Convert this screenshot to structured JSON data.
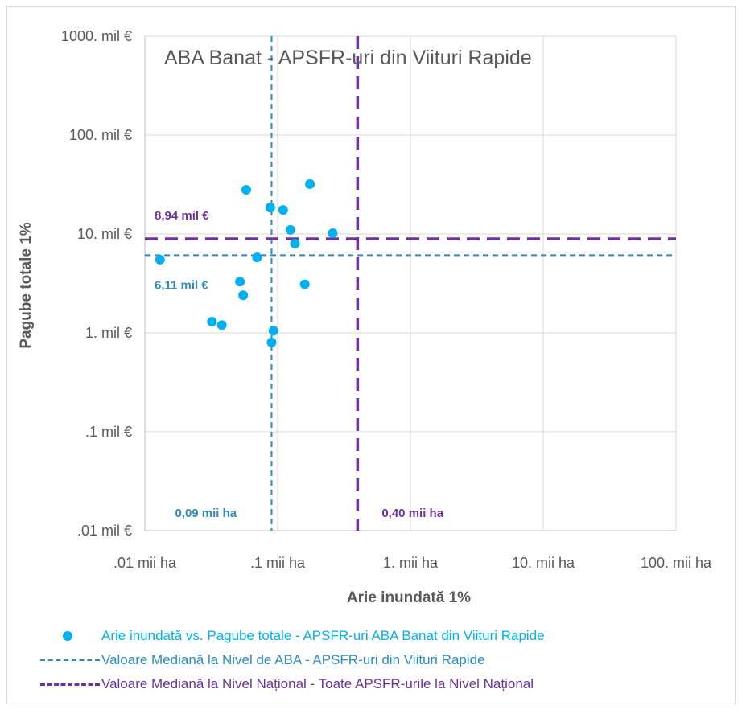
{
  "chart_data": {
    "type": "scatter",
    "title": "ABA Banat - APSFR-uri din Viituri Rapide",
    "xlabel": "Arie inundată 1%",
    "ylabel": "Pagube totale 1%",
    "x_scale": "log",
    "y_scale": "log",
    "xlim": [
      0.01,
      100
    ],
    "ylim": [
      0.01,
      1000
    ],
    "grid": true,
    "x_ticks": [
      {
        "value": 0.01,
        "label": ".01 mii ha"
      },
      {
        "value": 0.1,
        "label": ".1 mii ha"
      },
      {
        "value": 1,
        "label": "1. mii ha"
      },
      {
        "value": 10,
        "label": "10. mii ha"
      },
      {
        "value": 100,
        "label": "100. mii ha"
      }
    ],
    "y_ticks": [
      {
        "value": 0.01,
        "label": ".01 mil €"
      },
      {
        "value": 0.1,
        "label": ".1 mil €"
      },
      {
        "value": 1,
        "label": "1. mil €"
      },
      {
        "value": 10,
        "label": "10. mil €"
      },
      {
        "value": 100,
        "label": "100. mil €"
      },
      {
        "value": 1000,
        "label": "1000. mil €"
      }
    ],
    "series": [
      {
        "name": "Arie inundată vs. Pagube totale - APSFR-uri ABA Banat din Viituri Rapide",
        "color": "#00b0f0",
        "points": [
          {
            "x": 0.013,
            "y": 5.5
          },
          {
            "x": 0.032,
            "y": 1.3
          },
          {
            "x": 0.038,
            "y": 1.2
          },
          {
            "x": 0.052,
            "y": 3.3
          },
          {
            "x": 0.055,
            "y": 2.4
          },
          {
            "x": 0.058,
            "y": 28
          },
          {
            "x": 0.07,
            "y": 5.8
          },
          {
            "x": 0.088,
            "y": 18.5
          },
          {
            "x": 0.09,
            "y": 0.8
          },
          {
            "x": 0.093,
            "y": 1.05
          },
          {
            "x": 0.11,
            "y": 17.5
          },
          {
            "x": 0.125,
            "y": 11
          },
          {
            "x": 0.135,
            "y": 8
          },
          {
            "x": 0.16,
            "y": 3.1
          },
          {
            "x": 0.175,
            "y": 32
          },
          {
            "x": 0.26,
            "y": 10.2
          }
        ]
      }
    ],
    "reference_lines": [
      {
        "name": "Valoare Mediană la Nivel de ABA - APSFR-uri din Viituri Rapide",
        "color": "#2e8bc0",
        "style": "short-dash",
        "x": 0.09,
        "y": 6.11,
        "x_label": "0,09 mii ha",
        "y_label": "6,11 mil €"
      },
      {
        "name": "Valoare Mediană la Nivel Național - Toate APSFR-urile la Nivel Național",
        "color": "#7030a0",
        "style": "long-dash",
        "x": 0.4,
        "y": 8.94,
        "x_label": "0,40 mii ha",
        "y_label": "8,94 mil €"
      }
    ],
    "legend_placement": "bottom"
  }
}
